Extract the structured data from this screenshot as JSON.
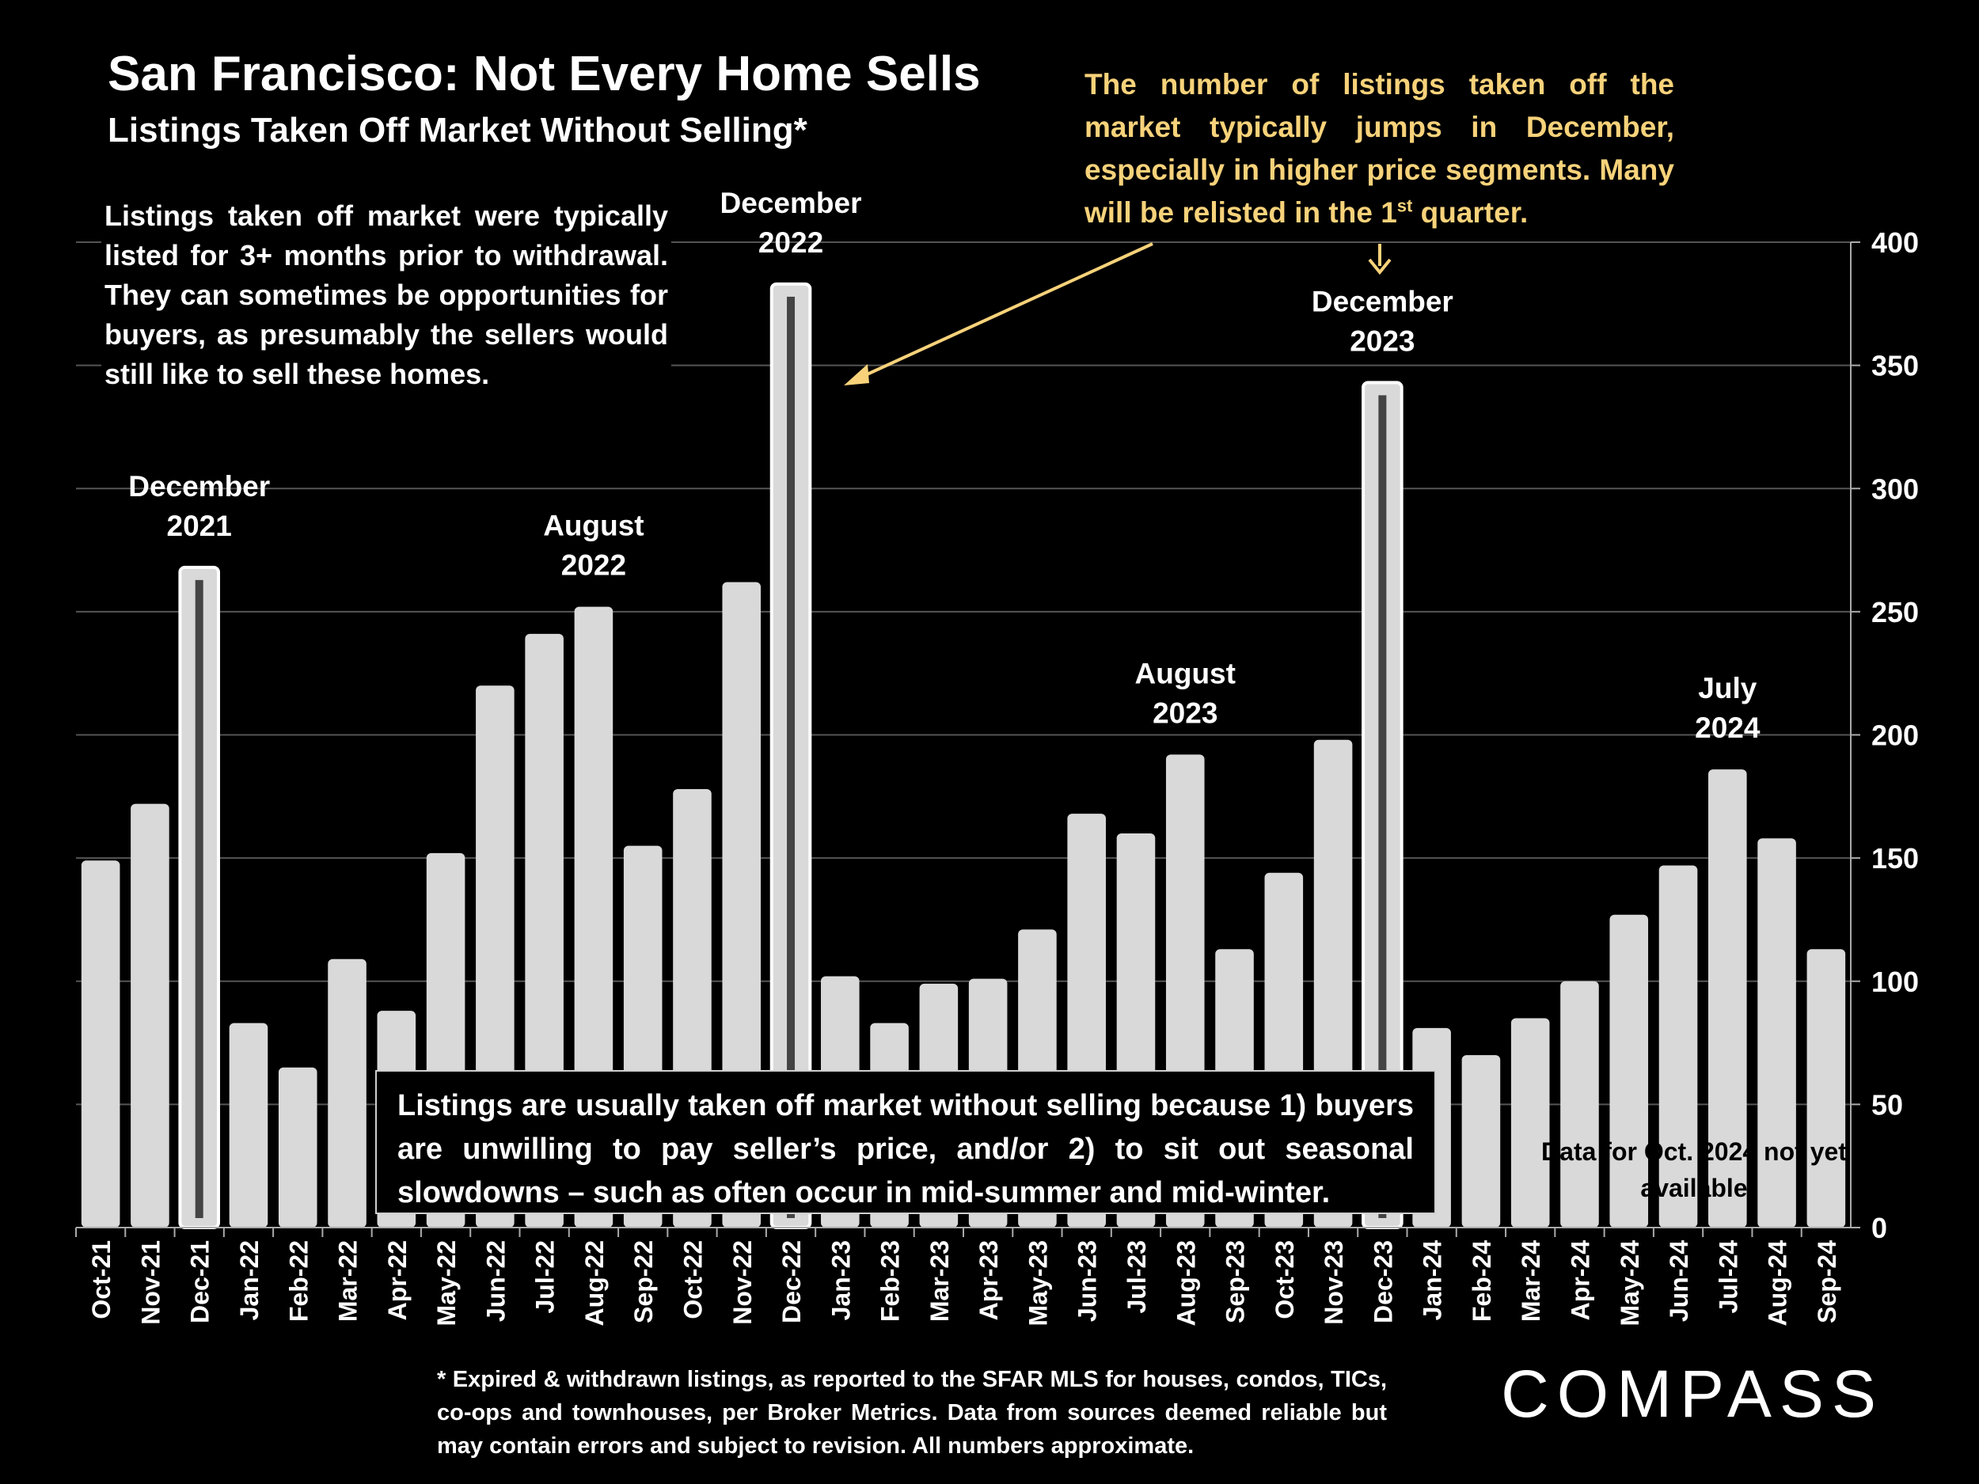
{
  "title": "San Francisco: Not Every Home Sells",
  "subtitle": "Listings Taken Off Market Without Selling*",
  "note_left": "Listings taken off market were typically listed for 3+ months prior to withdrawal. They can sometimes be opportunities for buyers, as presumably the sellers would still like to sell these homes.",
  "note_yellow_main": "The number of listings taken off the market typically jumps in December, especially in higher price segments. Many will be relisted in the 1",
  "note_yellow_sup": "st",
  "note_yellow_end": " quarter.",
  "note_box": "Listings are usually taken off market without selling because 1) buyers are unwilling to pay seller’s price, and/or 2) to sit out seasonal slowdowns – such as often occur in mid-summer and mid-winter.",
  "note_oct": "Data for Oct. 2024 not yet available",
  "footnote": "* Expired & withdrawn listings, as reported to the SFAR MLS for houses, condos, TICs, co-ops and townhouses, per Broker Metrics. Data from sources deemed reliable but may contain errors and subject to revision. All numbers approximate.",
  "logo_text": "COMPASS",
  "colors": {
    "background": "#000000",
    "bar": "#d9d9d9",
    "highlight_marker": "#444444",
    "annotation": "#f7d27a",
    "grid": "#555555"
  },
  "chart_data": {
    "type": "bar",
    "categories": [
      "Oct-21",
      "Nov-21",
      "Dec-21",
      "Jan-22",
      "Feb-22",
      "Mar-22",
      "Apr-22",
      "May-22",
      "Jun-22",
      "Jul-22",
      "Aug-22",
      "Sep-22",
      "Oct-22",
      "Nov-22",
      "Dec-22",
      "Jan-23",
      "Feb-23",
      "Mar-23",
      "Apr-23",
      "May-23",
      "Jun-23",
      "Jul-23",
      "Aug-23",
      "Sep-23",
      "Oct-23",
      "Nov-23",
      "Dec-23",
      "Jan-24",
      "Feb-24",
      "Mar-24",
      "Apr-24",
      "May-24",
      "Jun-24",
      "Jul-24",
      "Aug-24",
      "Sep-24"
    ],
    "values": [
      149,
      172,
      268,
      83,
      65,
      109,
      88,
      152,
      220,
      241,
      252,
      155,
      178,
      262,
      383,
      102,
      83,
      99,
      101,
      121,
      168,
      160,
      192,
      113,
      144,
      198,
      343,
      81,
      70,
      85,
      100,
      127,
      147,
      186,
      158,
      113
    ],
    "highlighted": [
      "Dec-21",
      "Dec-22",
      "Dec-23"
    ],
    "ylim": [
      0,
      400
    ],
    "yticks": [
      0,
      50,
      100,
      150,
      200,
      250,
      300,
      350,
      400
    ],
    "y_axis_side": "right",
    "grid": true,
    "legend": "none",
    "annotations": [
      {
        "category": "Dec-21",
        "lines": [
          "December",
          "2021"
        ]
      },
      {
        "category": "Aug-22",
        "lines": [
          "August",
          "2022"
        ]
      },
      {
        "category": "Dec-22",
        "lines": [
          "December",
          "2022"
        ]
      },
      {
        "category": "Aug-23",
        "lines": [
          "August",
          "2023"
        ]
      },
      {
        "category": "Dec-23",
        "lines": [
          "December",
          "2023"
        ]
      },
      {
        "category": "Jul-24",
        "lines": [
          "July",
          "2024"
        ]
      }
    ]
  }
}
